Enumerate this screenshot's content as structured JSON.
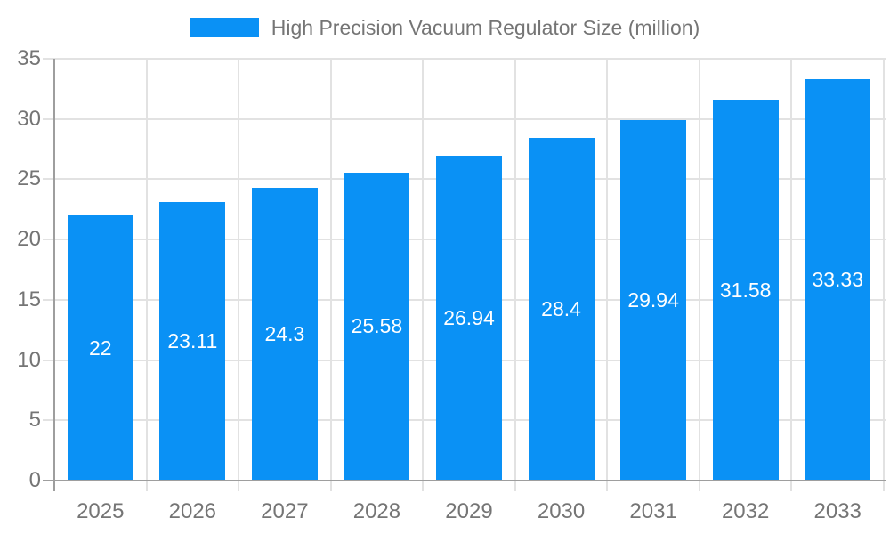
{
  "chart_data": {
    "type": "bar",
    "title": "High Precision Vacuum Regulator Size (million)",
    "series_name": "High Precision Vacuum Regulator Size (million)",
    "categories": [
      "2025",
      "2026",
      "2027",
      "2028",
      "2029",
      "2030",
      "2031",
      "2032",
      "2033"
    ],
    "values": [
      22,
      23.11,
      24.3,
      25.58,
      26.94,
      28.4,
      29.94,
      31.58,
      33.33
    ],
    "value_labels": [
      "22",
      "23.11",
      "24.3",
      "25.58",
      "26.94",
      "28.4",
      "29.94",
      "31.58",
      "33.33"
    ],
    "xlabel": "",
    "ylabel": "",
    "ylim": [
      0,
      35
    ],
    "yticks": [
      0,
      5,
      10,
      15,
      20,
      25,
      30,
      35
    ],
    "grid": true,
    "legend_position": "top",
    "value_label_position": "center-of-bar",
    "colors": {
      "bar": "#0a91f5",
      "value_label_text": "#ffffff",
      "axis_text": "#757575",
      "axis_line": "#9e9e9e",
      "gridline": "#e2e2e2",
      "background": "#ffffff"
    }
  }
}
